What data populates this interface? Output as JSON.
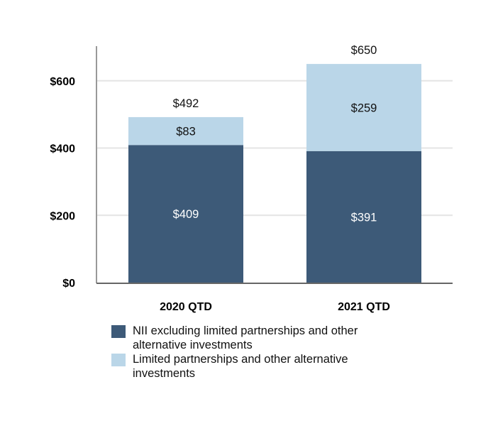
{
  "chart_data": {
    "type": "bar",
    "stacked": true,
    "categories": [
      "2020 QTD",
      "2021 QTD"
    ],
    "series": [
      {
        "name": "NII excluding limited partnerships and other alternative investments",
        "values": [
          409,
          391
        ],
        "labels": [
          "$409",
          "$391"
        ],
        "color": "#3d5a78"
      },
      {
        "name": "Limited partnerships and other alternative investments",
        "values": [
          83,
          259
        ],
        "labels": [
          "$83",
          "$259"
        ],
        "color": "#bad6e8"
      }
    ],
    "totals": [
      492,
      650
    ],
    "total_labels": [
      "$492",
      "$650"
    ],
    "yticks": [
      0,
      200,
      400,
      600
    ],
    "ytick_labels": [
      "$0",
      "$200",
      "$400",
      "$600"
    ],
    "ylim": [
      0,
      700
    ],
    "grid": true,
    "title": "",
    "xlabel": "",
    "ylabel": "",
    "legend_placement": "bottom"
  }
}
